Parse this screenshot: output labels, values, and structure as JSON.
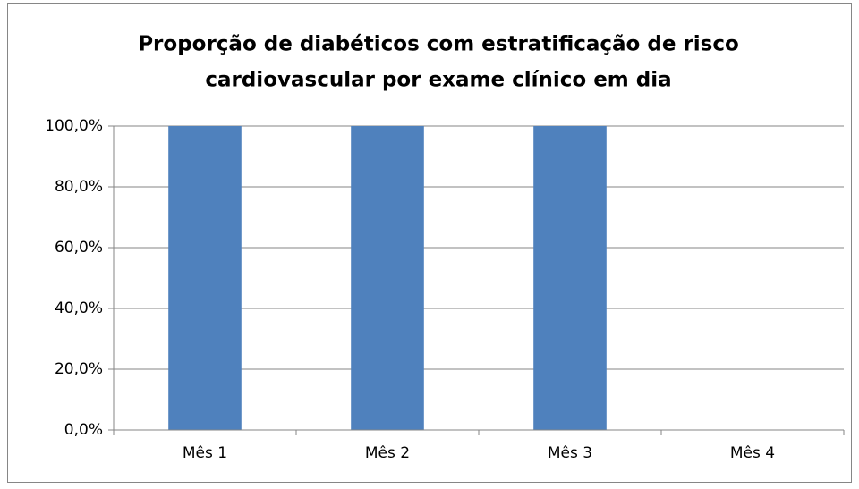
{
  "chart_data": {
    "type": "bar",
    "title": [
      "Proporção de diabéticos com estratificação de risco",
      "cardiovascular por  exame clínico em dia"
    ],
    "categories": [
      "Mês 1",
      "Mês 2",
      "Mês 3",
      "Mês 4"
    ],
    "values": [
      100,
      100,
      100,
      0
    ],
    "color": "#4f81bd",
    "ylim": [
      0,
      100
    ],
    "yticks": [
      {
        "value": 0,
        "label": "0,0%"
      },
      {
        "value": 20,
        "label": "20,0%"
      },
      {
        "value": 40,
        "label": "40,0%"
      },
      {
        "value": 60,
        "label": "60,0%"
      },
      {
        "value": 80,
        "label": "80,0%"
      },
      {
        "value": 100,
        "label": "100,0%"
      }
    ],
    "grid": true
  }
}
